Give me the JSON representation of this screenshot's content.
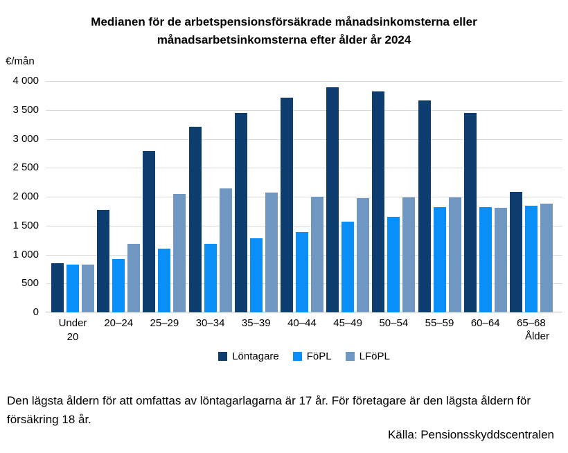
{
  "title": {
    "line1": "Medianen för de arbetspensionsförsäkrade månadsinkomsterna eller",
    "line2": "månadsarbetsinkomsterna efter ålder år 2024"
  },
  "chart_data": {
    "type": "bar",
    "unit_label": "€/mån",
    "xlabel": "Ålder",
    "ylim": [
      0,
      4000
    ],
    "grid": true,
    "legend_position": "bottom-center",
    "ytick_values": [
      0,
      500,
      1000,
      1500,
      2000,
      2500,
      3000,
      3500,
      4000
    ],
    "ytick_labels": [
      "0",
      "500",
      "1 000",
      "1 500",
      "2 000",
      "2 500",
      "3 000",
      "3 500",
      "4 000"
    ],
    "categories": [
      "Under\n20",
      "20–24",
      "25–29",
      "30–34",
      "35–39",
      "40–44",
      "45–49",
      "50–54",
      "55–59",
      "60–64",
      "65–68"
    ],
    "series": [
      {
        "name": "Löntagare",
        "color": "#0E3D70",
        "values": [
          850,
          1770,
          2790,
          3210,
          3450,
          3710,
          3890,
          3820,
          3670,
          3450,
          2080
        ]
      },
      {
        "name": "FöPL",
        "color": "#0A8EF8",
        "values": [
          830,
          920,
          1100,
          1180,
          1280,
          1390,
          1570,
          1650,
          1820,
          1820,
          1840
        ]
      },
      {
        "name": "LFöPL",
        "color": "#7097C1",
        "values": [
          830,
          1180,
          2050,
          2140,
          2070,
          2000,
          1980,
          1990,
          1990,
          1810,
          1880
        ]
      }
    ]
  },
  "colors": {
    "gridline": "#D9D9D9",
    "axis_line": "#BFBFBF",
    "text": "#000000",
    "background": "#FFFFFF"
  },
  "footer": {
    "note": "Den lägsta åldern för att omfattas av löntagarlagarna är 17 år. För företagare är den lägsta åldern för försäkring 18 år.",
    "source": "Källa: Pensionsskyddscentralen"
  }
}
